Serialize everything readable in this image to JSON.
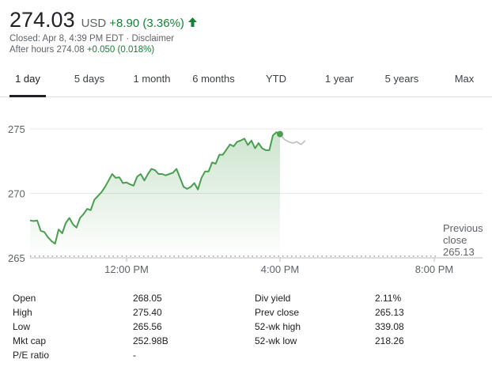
{
  "header": {
    "price": "274.03",
    "currency": "USD",
    "change": "+8.90 (3.36%)",
    "closed_text": "Closed: Apr 8, 4:39 PM EDT · Disclaimer",
    "after_hours_label": "After hours 274.08",
    "after_hours_change": "+0.050 (0.018%)"
  },
  "tabs": [
    "1 day",
    "5 days",
    "1 month",
    "6 months",
    "YTD",
    "1 year",
    "5 years",
    "Max"
  ],
  "active_tab": "1 day",
  "colors": {
    "up": "#188038",
    "line": "#4a9e4f",
    "after_hours": "#bdbdbd"
  },
  "chart_data": {
    "type": "area",
    "ylim": [
      265,
      275.5
    ],
    "yticks": [
      "275",
      "270",
      "265"
    ],
    "xticks": [
      "12:00 PM",
      "4:00 PM",
      "8:00 PM"
    ],
    "previous_close_label": [
      "Previous",
      "close",
      "265.13"
    ],
    "previous_close": 265.13,
    "series": [
      {
        "values": [
          267.9,
          267.85,
          267.9,
          267.1,
          267.0,
          266.6,
          266.3,
          266.1,
          267.2,
          266.9,
          267.7,
          268.1,
          267.6,
          267.35,
          268.1,
          268.4,
          268.8,
          268.7,
          269.5,
          269.8,
          270.1,
          270.5,
          271.0,
          271.5,
          271.2,
          271.25,
          270.8,
          270.85,
          270.7,
          270.6,
          271.3,
          271.5,
          271.0,
          271.5,
          271.9,
          271.8,
          271.5,
          271.5,
          271.4,
          271.5,
          271.6,
          271.9,
          271.2,
          270.5,
          270.35,
          270.5,
          270.8,
          270.3,
          271.2,
          271.7,
          271.7,
          272.4,
          272.3,
          273.0,
          273.0,
          273.4,
          273.8,
          273.65,
          274.0,
          274.1,
          274.25,
          273.75,
          274.1,
          273.5,
          273.9,
          273.5,
          273.35,
          273.35,
          274.5,
          274.75,
          274.6
        ],
        "after_hours": [
          274.6,
          274.2,
          274.0,
          273.9,
          274.0,
          273.8,
          274.1
        ]
      }
    ]
  },
  "stats": {
    "left": [
      {
        "label": "Open",
        "value": "268.05"
      },
      {
        "label": "High",
        "value": "275.40"
      },
      {
        "label": "Low",
        "value": "265.56"
      },
      {
        "label": "Mkt cap",
        "value": "252.98B"
      },
      {
        "label": "P/E ratio",
        "value": "-"
      }
    ],
    "right": [
      {
        "label": "Div yield",
        "value": "2.11%"
      },
      {
        "label": "Prev close",
        "value": "265.13"
      },
      {
        "label": "52-wk high",
        "value": "339.08"
      },
      {
        "label": "52-wk low",
        "value": "218.26"
      }
    ]
  }
}
